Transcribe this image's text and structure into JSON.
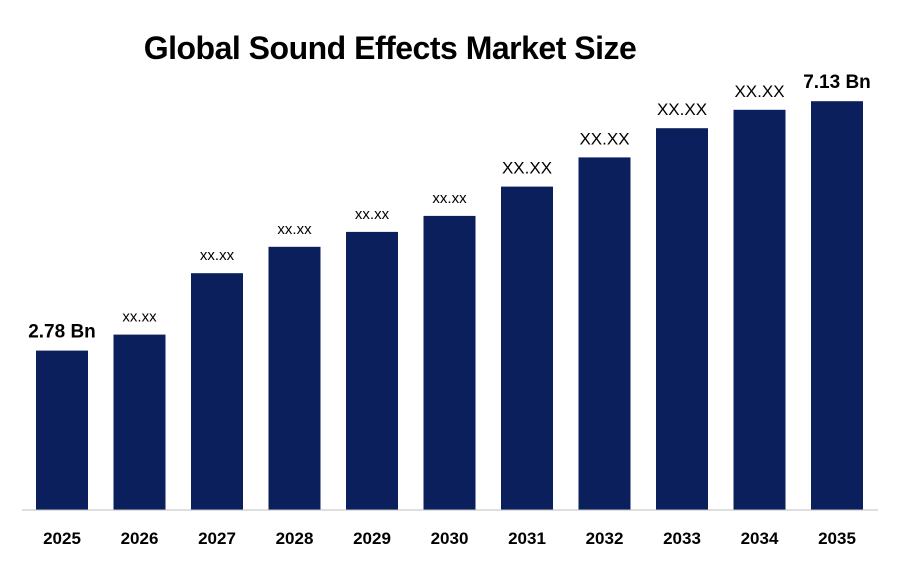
{
  "chart_data": {
    "type": "bar",
    "title": "Global Sound Effects Market Size",
    "categories": [
      "2025",
      "2026",
      "2027",
      "2028",
      "2029",
      "2030",
      "2031",
      "2032",
      "2033",
      "2034",
      "2035"
    ],
    "values": [
      2.78,
      3.06,
      4.13,
      4.59,
      4.85,
      5.13,
      5.64,
      6.15,
      6.66,
      6.98,
      7.13
    ],
    "data_labels": [
      "2.78 Bn",
      "xx.xx",
      "xx.xx",
      "xx.xx",
      "xx.xx",
      "xx.xx",
      "XX.XX",
      "XX.XX",
      "XX.XX",
      "XX.XX",
      "7.13 Bn"
    ],
    "xlabel": "",
    "ylabel": "",
    "ylim": [
      0,
      7.5
    ],
    "grid": false,
    "bar_color": "#0a1f5c"
  }
}
